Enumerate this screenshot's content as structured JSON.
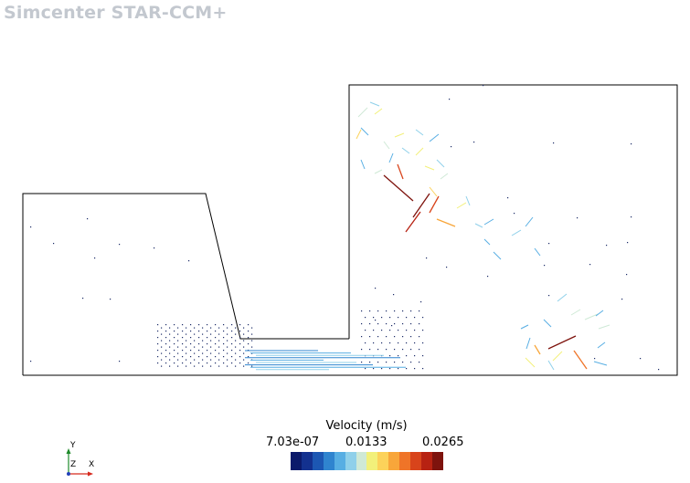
{
  "app": {
    "brand": "Simcenter STAR-CCM+"
  },
  "colorbar": {
    "title": "Velocity (m/s)",
    "min_label": "7.03e-07",
    "mid_label": "0.0133",
    "max_label": "0.0265",
    "colormap": [
      "#0b1a6b",
      "#13318f",
      "#1c57b3",
      "#2f84cf",
      "#57aee3",
      "#8fd0ea",
      "#cfe9d6",
      "#f2f07a",
      "#fcd25a",
      "#f8a63a",
      "#ef7428",
      "#d8441b",
      "#b72212",
      "#7e130d"
    ]
  },
  "triad": {
    "y_label": "Y",
    "z_label": "Z",
    "x_label": "X"
  },
  "colors": {
    "geometry_line": "#000000",
    "x_axis": "#d62a1e",
    "y_axis": "#1e8a2a",
    "z_origin": "#2340b8"
  }
}
